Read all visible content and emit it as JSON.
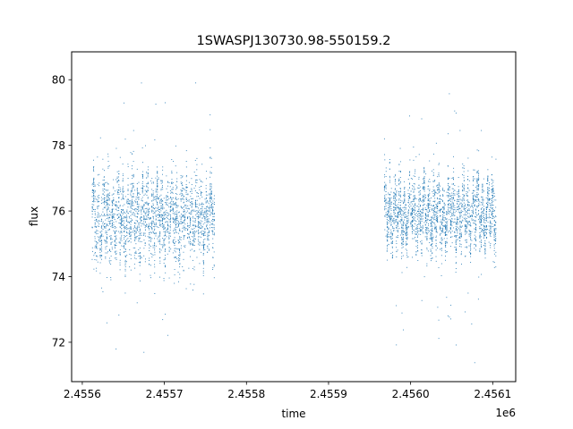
{
  "chart_data": {
    "type": "scatter",
    "title": "1SWASPJ130730.98-550159.2",
    "xlabel": "time",
    "ylabel": "flux",
    "x_offset_label": "1e6",
    "xlim": [
      2455587,
      2456128
    ],
    "ylim": [
      70.8,
      80.85
    ],
    "xticks": [
      2455600,
      2455700,
      2455800,
      2455900,
      2456000,
      2456100
    ],
    "xtick_labels": [
      "2.4556",
      "2.4557",
      "2.4558",
      "2.4559",
      "2.4560",
      "2.4561"
    ],
    "yticks": [
      72,
      74,
      76,
      78,
      80
    ],
    "ytick_labels": [
      "72",
      "74",
      "76",
      "78",
      "80"
    ],
    "grid": false,
    "series": [
      {
        "color": "#1f77b4",
        "marker": "point",
        "segments": [
          {
            "x_range": [
              2455612,
              2455762
            ],
            "y_center": 75.8,
            "y_spread": 0.75,
            "y_min": 71.3,
            "y_max": 80.4
          },
          {
            "x_range": [
              2455968,
              2456105
            ],
            "y_center": 75.9,
            "y_spread": 0.6,
            "y_min": 71.2,
            "y_max": 80.4
          }
        ],
        "approx_point_count": 5200
      }
    ]
  }
}
